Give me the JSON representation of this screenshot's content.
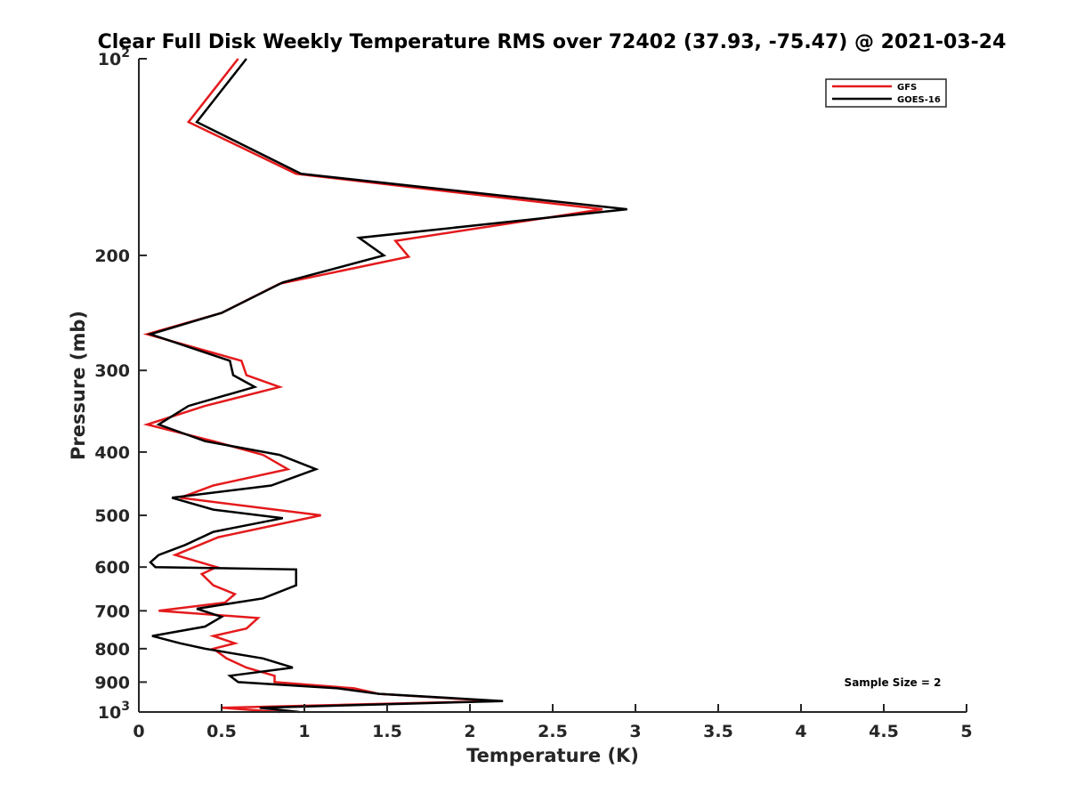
{
  "chart_data": {
    "type": "line",
    "title": "Clear Full Disk Weekly Temperature RMS over 72402 (37.93, -75.47) @ 2021-03-24",
    "xlabel": "Temperature (K)",
    "ylabel": "Pressure (mb)",
    "xlim": [
      0,
      5
    ],
    "ylim": [
      1000,
      100
    ],
    "y_scale": "log",
    "x_ticks": [
      "0",
      "0.5",
      "1",
      "1.5",
      "2",
      "2.5",
      "3",
      "3.5",
      "4",
      "4.5",
      "5"
    ],
    "y_ticks": [
      {
        "value": 100,
        "label": "10",
        "sup": "2"
      },
      {
        "value": 200,
        "label": "200",
        "sup": ""
      },
      {
        "value": 300,
        "label": "300",
        "sup": ""
      },
      {
        "value": 400,
        "label": "400",
        "sup": ""
      },
      {
        "value": 500,
        "label": "500",
        "sup": ""
      },
      {
        "value": 600,
        "label": "600",
        "sup": ""
      },
      {
        "value": 700,
        "label": "700",
        "sup": ""
      },
      {
        "value": 800,
        "label": "800",
        "sup": ""
      },
      {
        "value": 900,
        "label": "900",
        "sup": ""
      },
      {
        "value": 1000,
        "label": "10",
        "sup": "3"
      }
    ],
    "grid": false,
    "legend_position": "top-right",
    "annotation": "Sample Size = 2",
    "series": [
      {
        "name": "GFS",
        "color": "#e41a1c",
        "points": [
          [
            0.6,
            100
          ],
          [
            0.3,
            125
          ],
          [
            0.95,
            150
          ],
          [
            2.8,
            170
          ],
          [
            1.55,
            190
          ],
          [
            1.63,
            201
          ],
          [
            0.85,
            221
          ],
          [
            0.5,
            245
          ],
          [
            0.05,
            264
          ],
          [
            0.62,
            290
          ],
          [
            0.65,
            305
          ],
          [
            0.85,
            318
          ],
          [
            0.4,
            340
          ],
          [
            0.05,
            363
          ],
          [
            0.45,
            385
          ],
          [
            0.75,
            404
          ],
          [
            0.9,
            425
          ],
          [
            0.45,
            450
          ],
          [
            0.25,
            470
          ],
          [
            1.1,
            500
          ],
          [
            0.48,
            540
          ],
          [
            0.22,
            575
          ],
          [
            0.47,
            600
          ],
          [
            0.38,
            615
          ],
          [
            0.45,
            640
          ],
          [
            0.58,
            660
          ],
          [
            0.52,
            680
          ],
          [
            0.12,
            700
          ],
          [
            0.72,
            718
          ],
          [
            0.65,
            745
          ],
          [
            0.45,
            765
          ],
          [
            0.58,
            785
          ],
          [
            0.45,
            800
          ],
          [
            0.53,
            828
          ],
          [
            0.65,
            855
          ],
          [
            0.82,
            880
          ],
          [
            0.82,
            900
          ],
          [
            1.3,
            920
          ],
          [
            1.45,
            938
          ],
          [
            2.15,
            962
          ],
          [
            0.5,
            985
          ],
          [
            0.85,
            1000
          ]
        ]
      },
      {
        "name": "GOES-16",
        "color": "#000000",
        "points": [
          [
            0.65,
            100
          ],
          [
            0.35,
            125
          ],
          [
            0.98,
            150
          ],
          [
            2.95,
            170
          ],
          [
            1.33,
            188
          ],
          [
            1.48,
            200
          ],
          [
            0.87,
            220
          ],
          [
            0.5,
            245
          ],
          [
            0.07,
            264
          ],
          [
            0.55,
            290
          ],
          [
            0.57,
            305
          ],
          [
            0.7,
            318
          ],
          [
            0.3,
            340
          ],
          [
            0.12,
            363
          ],
          [
            0.4,
            385
          ],
          [
            0.85,
            404
          ],
          [
            1.07,
            425
          ],
          [
            0.8,
            450
          ],
          [
            0.2,
            470
          ],
          [
            0.45,
            490
          ],
          [
            0.87,
            505
          ],
          [
            0.45,
            530
          ],
          [
            0.28,
            555
          ],
          [
            0.12,
            575
          ],
          [
            0.07,
            590
          ],
          [
            0.1,
            600
          ],
          [
            0.95,
            605
          ],
          [
            0.95,
            640
          ],
          [
            0.75,
            670
          ],
          [
            0.35,
            695
          ],
          [
            0.5,
            715
          ],
          [
            0.4,
            740
          ],
          [
            0.08,
            765
          ],
          [
            0.25,
            785
          ],
          [
            0.4,
            800
          ],
          [
            0.75,
            828
          ],
          [
            0.93,
            855
          ],
          [
            0.55,
            880
          ],
          [
            0.6,
            900
          ],
          [
            1.2,
            920
          ],
          [
            1.45,
            938
          ],
          [
            2.2,
            962
          ],
          [
            0.73,
            985
          ],
          [
            0.97,
            1000
          ]
        ]
      }
    ]
  }
}
